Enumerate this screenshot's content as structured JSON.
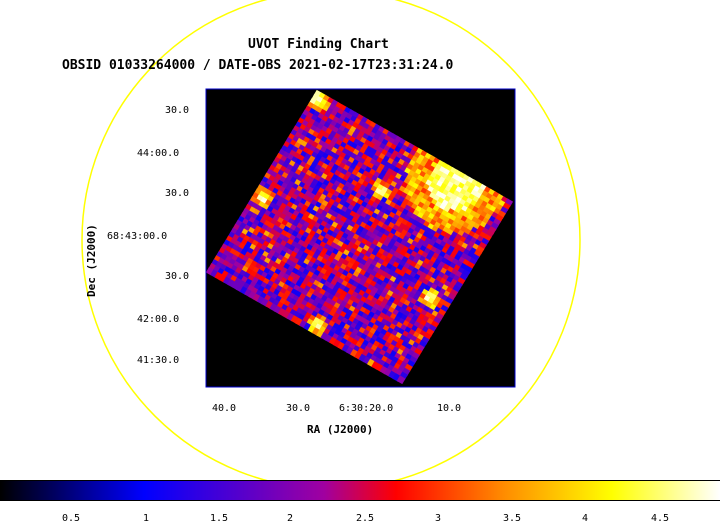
{
  "header": {
    "title": "UVOT Finding Chart",
    "subtitle": "OBSID 01033264000 / DATE-OBS 2021-02-17T23:31:24.0"
  },
  "axes": {
    "ra_label": "RA (J2000)",
    "dec_label": "Dec (J2000)",
    "ra_ticks": [
      "40.0",
      "30.0",
      "6:30:20.0",
      "10.0"
    ],
    "dec_ticks": [
      "30.0",
      "44:00.0",
      "30.0",
      "68:43:00.0",
      "30.0",
      "42:00.0",
      "41:30.0"
    ]
  },
  "colorbar": {
    "ticks": [
      "0.5",
      "1",
      "1.5",
      "2",
      "2.5",
      "3",
      "3.5",
      "4",
      "4.5"
    ],
    "min": 0,
    "max": 4.9
  },
  "colors": {
    "overlay_circle": "#ffff00",
    "frame": "#0000cc",
    "background": "#000000"
  }
}
